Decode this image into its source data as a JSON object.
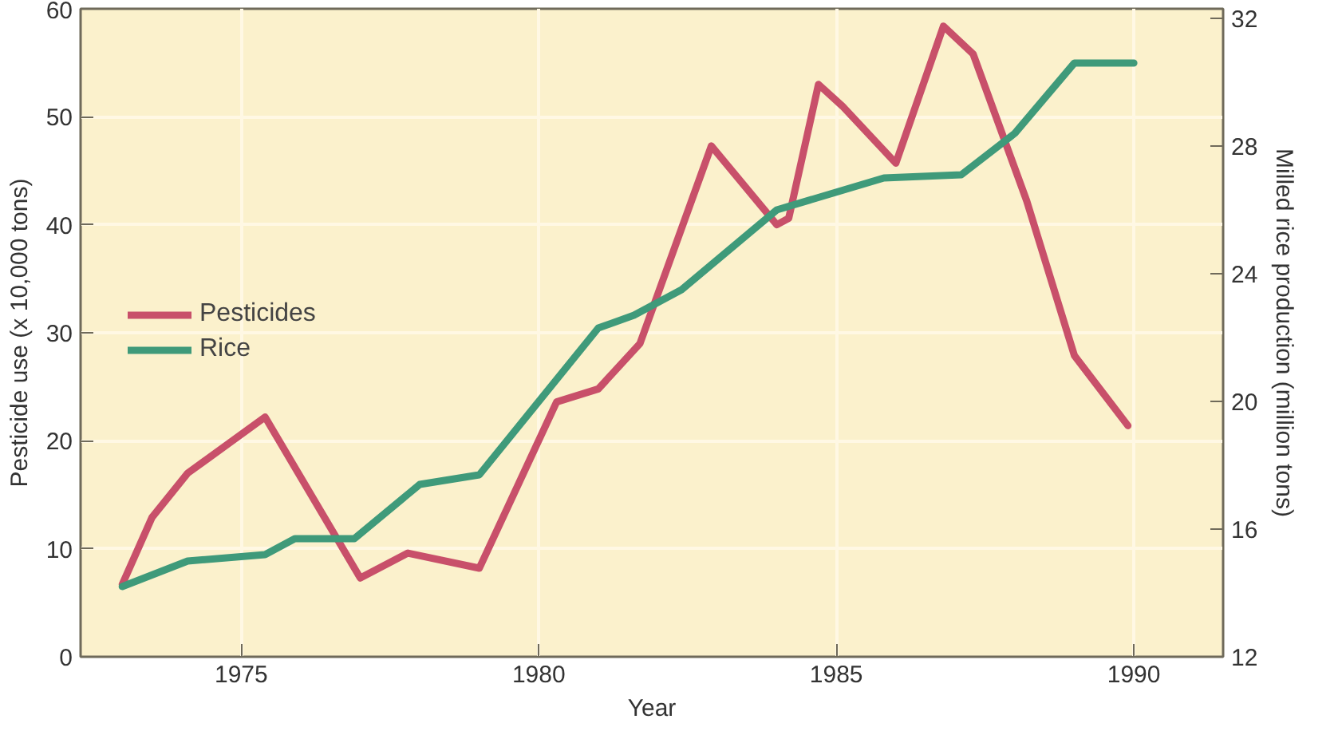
{
  "chart_data": {
    "type": "line",
    "xlabel": "Year",
    "ylabel": "Pesticide use (x 10,000 tons)",
    "y2label": "Milled rice production (million tons)",
    "xlim": [
      1972.3,
      1991.5
    ],
    "xticks": [
      1975,
      1980,
      1985,
      1990
    ],
    "ylim": [
      0,
      60
    ],
    "yticks": [
      0,
      10,
      20,
      30,
      40,
      50,
      60
    ],
    "y2lim": [
      12,
      32.3
    ],
    "y2ticks": [
      12,
      16,
      20,
      24,
      28,
      32
    ],
    "grid": true,
    "legend": "left",
    "marker": "none",
    "line_style": "solid",
    "series": [
      {
        "name": "Pesticides",
        "color": "#c8506a",
        "x": [
          1973.0,
          1973.5,
          1974.1,
          1975.4,
          1977.0,
          1977.8,
          1979.0,
          1980.3,
          1981.0,
          1981.7,
          1982.9,
          1984.0,
          1984.2,
          1984.7,
          1985.1,
          1986.0,
          1986.8,
          1987.3,
          1988.2,
          1989.0,
          1989.9
        ],
        "values": [
          6.7,
          12.9,
          17,
          22.2,
          7.3,
          9.6,
          8.2,
          23.6,
          24.8,
          29,
          47.3,
          40,
          40.6,
          53,
          51,
          45.7,
          58.4,
          55.8,
          42.2,
          27.9,
          21.4
        ]
      },
      {
        "name": "Rice",
        "color": "#3f9a7a",
        "axis": "y2",
        "x": [
          1973.0,
          1974.1,
          1975.4,
          1975.9,
          1976.9,
          1978.0,
          1979.0,
          1981.0,
          1981.6,
          1982.4,
          1984.0,
          1985.8,
          1987.1,
          1988.0,
          1989.0,
          1990.0
        ],
        "values": [
          14.2,
          15.0,
          15.2,
          15.7,
          15.7,
          17.4,
          17.7,
          22.3,
          22.7,
          23.5,
          26.0,
          27.0,
          27.1,
          28.4,
          30.6,
          30.6
        ]
      }
    ]
  }
}
